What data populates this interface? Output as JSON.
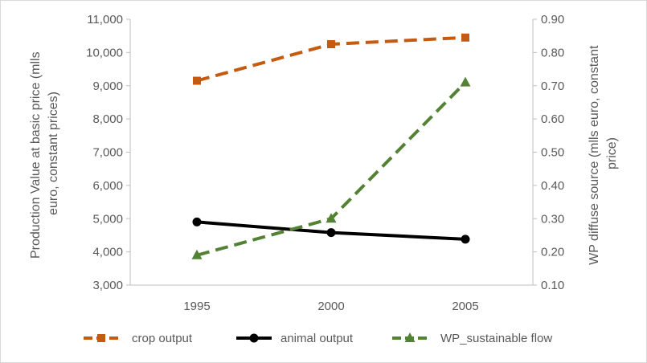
{
  "chart_data": {
    "type": "line",
    "x": [
      "1995",
      "2000",
      "2005"
    ],
    "series": [
      {
        "name": "crop output",
        "axis": "left",
        "color": "#c55a11",
        "dash": "dashed",
        "marker": "square",
        "values": [
          9150,
          10250,
          10450
        ]
      },
      {
        "name": "animal output",
        "axis": "left",
        "color": "#000000",
        "dash": "solid",
        "marker": "circle",
        "values": [
          4900,
          4580,
          4380
        ]
      },
      {
        "name": "WP_sustainable flow",
        "axis": "right",
        "color": "#548235",
        "dash": "dashed",
        "marker": "triangle",
        "values": [
          0.19,
          0.3,
          0.71
        ]
      }
    ],
    "y_left": {
      "label_lines": [
        "Production Value at basic price (mlls",
        "euro, constant prices)"
      ],
      "ylim": [
        3000,
        11000
      ],
      "ticks": [
        3000,
        4000,
        5000,
        6000,
        7000,
        8000,
        9000,
        10000,
        11000
      ],
      "tick_labels": [
        "3,000",
        "4,000",
        "5,000",
        "6,000",
        "7,000",
        "8,000",
        "9,000",
        "10,000",
        "11,000"
      ]
    },
    "y_right": {
      "label_lines": [
        "WP diffuse source (mlls euro, constant",
        "price)"
      ],
      "ylim": [
        0.1,
        0.9
      ],
      "ticks": [
        0.1,
        0.2,
        0.3,
        0.4,
        0.5,
        0.6,
        0.7,
        0.8,
        0.9
      ],
      "tick_labels": [
        "0.10",
        "0.20",
        "0.30",
        "0.40",
        "0.50",
        "0.60",
        "0.70",
        "0.80",
        "0.90"
      ]
    },
    "grid": false,
    "legend_position": "bottom"
  }
}
